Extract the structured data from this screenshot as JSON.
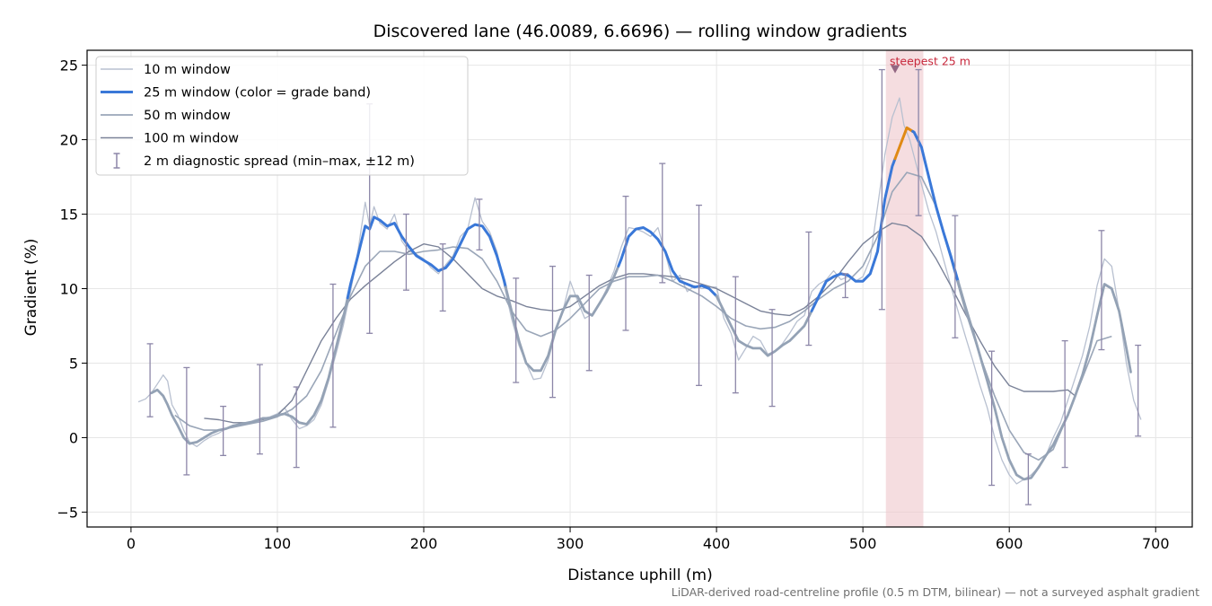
{
  "chart_data": {
    "type": "line",
    "title": "Discovered lane (46.0089, 6.6696) — rolling window gradients",
    "xlabel": "Distance uphill (m)",
    "ylabel": "Gradient (%)",
    "xlim": [
      -30,
      725
    ],
    "ylim": [
      -6,
      26
    ],
    "xticks": [
      0,
      100,
      200,
      300,
      400,
      500,
      600,
      700
    ],
    "yticks": [
      -5,
      0,
      5,
      10,
      15,
      20,
      25
    ],
    "grid": true,
    "legend_position": "top-left",
    "footnote": "LiDAR-derived road-centreline profile (0.5 m DTM, bilinear) — not a surveyed asphalt gradient",
    "colors": {
      "w10": "#b8c0d0",
      "w25": "#3a78d8",
      "w25_muted": "#94a2b5",
      "w25_peak": "#e08a14",
      "w50": "#9aa6b8",
      "w100": "#7a8298",
      "errorbar": "#8c86a8",
      "highlight": "#f0c8cc",
      "annotation": "#c8283c"
    },
    "series": [
      {
        "name": "10 m window",
        "x": [
          5,
          10,
          14,
          18,
          22,
          25,
          28,
          32,
          36,
          40,
          45,
          50,
          55,
          60,
          65,
          70,
          75,
          80,
          85,
          90,
          95,
          100,
          105,
          110,
          115,
          120,
          125,
          130,
          135,
          140,
          145,
          150,
          155,
          160,
          163,
          166,
          170,
          175,
          180,
          185,
          190,
          195,
          200,
          205,
          210,
          215,
          220,
          225,
          230,
          235,
          240,
          245,
          250,
          255,
          260,
          265,
          270,
          275,
          280,
          285,
          290,
          295,
          300,
          305,
          310,
          315,
          320,
          325,
          330,
          335,
          340,
          345,
          350,
          355,
          360,
          365,
          370,
          375,
          380,
          385,
          390,
          395,
          400,
          405,
          410,
          415,
          420,
          425,
          430,
          435,
          440,
          445,
          450,
          455,
          460,
          465,
          470,
          475,
          480,
          485,
          490,
          495,
          500,
          505,
          510,
          515,
          520,
          525,
          528,
          532,
          536,
          540,
          545,
          550,
          555,
          560,
          565,
          570,
          575,
          580,
          585,
          590,
          595,
          600,
          605,
          610,
          615,
          620,
          625,
          630,
          635,
          640,
          645,
          650,
          655,
          660,
          665,
          670,
          675,
          680,
          685,
          690
        ],
        "y": [
          2.4,
          2.6,
          3.0,
          3.6,
          4.2,
          3.8,
          2.2,
          1.5,
          0.5,
          -0.3,
          -0.6,
          -0.2,
          0.1,
          0.3,
          0.6,
          0.8,
          0.9,
          1.0,
          1.2,
          1.3,
          1.4,
          1.6,
          2.0,
          1.2,
          0.6,
          0.8,
          1.2,
          2.2,
          3.8,
          5.6,
          7.5,
          9.8,
          12.5,
          15.8,
          14.2,
          15.5,
          14.4,
          14.0,
          15.0,
          13.2,
          12.5,
          12.3,
          12.0,
          11.4,
          11.0,
          11.6,
          12.2,
          13.5,
          14.0,
          16.1,
          14.5,
          13.8,
          12.5,
          10.2,
          8.0,
          6.2,
          5.0,
          3.9,
          4.0,
          5.2,
          7.0,
          8.5,
          10.5,
          9.2,
          8.0,
          8.3,
          9.0,
          10.0,
          11.2,
          12.8,
          14.1,
          14.0,
          13.8,
          13.5,
          14.1,
          12.4,
          10.5,
          10.9,
          9.8,
          10.2,
          10.0,
          10.1,
          10.1,
          8.0,
          7.0,
          5.2,
          6.0,
          6.8,
          6.5,
          5.6,
          5.8,
          6.3,
          7.0,
          7.8,
          8.2,
          9.8,
          10.3,
          10.6,
          11.2,
          10.6,
          10.8,
          10.5,
          10.8,
          12.0,
          15.5,
          19.0,
          21.5,
          22.8,
          21.0,
          20.0,
          18.5,
          17.0,
          15.2,
          13.8,
          12.0,
          10.2,
          8.5,
          6.8,
          5.2,
          3.5,
          2.0,
          0.0,
          -1.5,
          -2.5,
          -3.1,
          -2.8,
          -2.5,
          -2.0,
          -1.2,
          0.0,
          1.0,
          2.5,
          4.0,
          5.5,
          7.5,
          10.2,
          12.0,
          11.5,
          8.5,
          5.0,
          2.5,
          1.2
        ]
      },
      {
        "name": "25 m window (color = grade band)",
        "x": [
          14,
          18,
          22,
          25,
          28,
          32,
          36,
          40,
          45,
          50,
          55,
          60,
          65,
          70,
          75,
          80,
          85,
          90,
          95,
          100,
          105,
          110,
          115,
          120,
          125,
          130,
          135,
          140,
          145,
          150,
          155,
          160,
          163,
          166,
          170,
          175,
          180,
          185,
          190,
          195,
          200,
          205,
          210,
          215,
          220,
          225,
          230,
          235,
          240,
          245,
          250,
          255,
          260,
          265,
          270,
          275,
          280,
          285,
          290,
          295,
          300,
          305,
          310,
          315,
          320,
          325,
          330,
          335,
          340,
          345,
          350,
          355,
          360,
          365,
          370,
          375,
          380,
          385,
          390,
          395,
          400,
          405,
          410,
          415,
          420,
          425,
          430,
          435,
          440,
          445,
          450,
          455,
          460,
          465,
          470,
          475,
          480,
          485,
          490,
          495,
          500,
          505,
          510,
          515,
          520,
          525,
          530,
          535,
          540,
          545,
          550,
          555,
          560,
          565,
          570,
          575,
          580,
          585,
          590,
          595,
          600,
          605,
          610,
          615,
          620,
          625,
          630,
          635,
          640,
          645,
          650,
          655,
          660,
          665,
          670,
          675,
          680,
          683
        ],
        "y": [
          3.0,
          3.2,
          2.8,
          2.2,
          1.5,
          0.8,
          0.0,
          -0.4,
          -0.3,
          0.0,
          0.3,
          0.5,
          0.6,
          0.8,
          0.9,
          1.0,
          1.1,
          1.3,
          1.3,
          1.5,
          1.6,
          1.4,
          1.0,
          0.9,
          1.5,
          2.5,
          4.0,
          6.0,
          8.0,
          10.3,
          12.2,
          14.2,
          14.0,
          14.8,
          14.6,
          14.2,
          14.4,
          13.5,
          12.8,
          12.2,
          11.9,
          11.6,
          11.2,
          11.4,
          12.0,
          13.0,
          14.0,
          14.3,
          14.2,
          13.5,
          12.2,
          10.5,
          8.5,
          6.5,
          5.0,
          4.5,
          4.5,
          5.5,
          7.2,
          8.5,
          9.5,
          9.5,
          8.5,
          8.2,
          9.0,
          9.8,
          10.8,
          12.0,
          13.5,
          14.0,
          14.1,
          13.8,
          13.3,
          12.5,
          11.2,
          10.5,
          10.3,
          10.1,
          10.2,
          10.0,
          9.5,
          8.5,
          7.5,
          6.5,
          6.2,
          6.0,
          6.0,
          5.5,
          5.8,
          6.2,
          6.5,
          7.0,
          7.5,
          8.5,
          9.5,
          10.5,
          10.8,
          11.0,
          10.9,
          10.5,
          10.5,
          11.0,
          12.5,
          16.0,
          18.2,
          19.5,
          20.8,
          20.5,
          19.5,
          17.5,
          15.5,
          13.8,
          12.2,
          10.5,
          8.8,
          7.2,
          5.5,
          3.8,
          2.0,
          0.0,
          -1.5,
          -2.5,
          -2.8,
          -2.7,
          -2.0,
          -1.2,
          -0.5,
          0.5,
          1.5,
          2.8,
          4.2,
          6.0,
          8.2,
          10.3,
          10.0,
          8.5,
          6.0,
          4.4
        ],
        "bands": [
          {
            "x_from": 14,
            "x_to": 148,
            "color": "#94a2b5"
          },
          {
            "x_from": 148,
            "x_to": 256,
            "color": "#3a78d8"
          },
          {
            "x_from": 256,
            "x_to": 333,
            "color": "#94a2b5"
          },
          {
            "x_from": 333,
            "x_to": 400,
            "color": "#3a78d8"
          },
          {
            "x_from": 400,
            "x_to": 465,
            "color": "#94a2b5"
          },
          {
            "x_from": 465,
            "x_to": 522,
            "color": "#3a78d8"
          },
          {
            "x_from": 522,
            "x_to": 534,
            "color": "#e08a14"
          },
          {
            "x_from": 534,
            "x_to": 565,
            "color": "#3a78d8"
          },
          {
            "x_from": 565,
            "x_to": 683,
            "color": "#94a2b5"
          }
        ]
      },
      {
        "name": "50 m window",
        "x": [
          30,
          40,
          50,
          60,
          70,
          80,
          90,
          100,
          110,
          120,
          130,
          140,
          150,
          160,
          170,
          180,
          190,
          200,
          210,
          220,
          230,
          240,
          250,
          260,
          270,
          280,
          290,
          300,
          310,
          320,
          330,
          340,
          350,
          360,
          370,
          380,
          390,
          400,
          410,
          420,
          430,
          440,
          450,
          460,
          470,
          480,
          490,
          500,
          510,
          520,
          530,
          540,
          550,
          560,
          570,
          580,
          590,
          600,
          610,
          620,
          630,
          640,
          650,
          660,
          670
        ],
        "y": [
          1.5,
          0.8,
          0.5,
          0.5,
          0.7,
          0.9,
          1.1,
          1.4,
          1.9,
          2.8,
          4.5,
          7.0,
          9.5,
          11.5,
          12.5,
          12.5,
          12.3,
          12.5,
          12.6,
          12.8,
          12.7,
          12.0,
          10.5,
          8.5,
          7.2,
          6.8,
          7.2,
          8.0,
          9.0,
          10.0,
          10.5,
          10.8,
          10.8,
          10.9,
          10.5,
          10.0,
          9.5,
          8.8,
          8.0,
          7.5,
          7.3,
          7.4,
          7.8,
          8.5,
          9.3,
          10.0,
          10.5,
          11.5,
          13.5,
          16.5,
          17.8,
          17.5,
          15.5,
          12.0,
          8.5,
          5.5,
          2.8,
          0.5,
          -1.0,
          -1.5,
          -0.8,
          1.5,
          4.0,
          6.5,
          6.8
        ]
      },
      {
        "name": "100 m window",
        "x": [
          50,
          60,
          70,
          80,
          90,
          100,
          110,
          120,
          130,
          140,
          150,
          160,
          170,
          180,
          190,
          200,
          210,
          220,
          230,
          240,
          250,
          260,
          270,
          280,
          290,
          300,
          310,
          320,
          330,
          340,
          350,
          360,
          370,
          380,
          390,
          400,
          410,
          420,
          430,
          440,
          450,
          460,
          470,
          480,
          490,
          500,
          510,
          520,
          530,
          540,
          550,
          560,
          570,
          580,
          590,
          600,
          610,
          620,
          630,
          640,
          645
        ],
        "y": [
          1.3,
          1.2,
          1.0,
          1.0,
          1.2,
          1.5,
          2.5,
          4.5,
          6.5,
          8.0,
          9.3,
          10.2,
          11.0,
          11.8,
          12.5,
          13.0,
          12.8,
          12.0,
          11.0,
          10.0,
          9.5,
          9.2,
          8.8,
          8.6,
          8.5,
          8.8,
          9.5,
          10.2,
          10.7,
          11.0,
          11.0,
          10.9,
          10.8,
          10.6,
          10.3,
          10.0,
          9.5,
          9.0,
          8.5,
          8.3,
          8.2,
          8.7,
          9.5,
          10.5,
          11.8,
          13.0,
          13.8,
          14.4,
          14.2,
          13.5,
          12.0,
          10.2,
          8.3,
          6.5,
          4.8,
          3.5,
          3.1,
          3.1,
          3.1,
          3.2,
          2.8
        ]
      }
    ],
    "error_bars": {
      "name": "2 m diagnostic spread (min–max, ±12 m)",
      "x": [
        13,
        38,
        63,
        88,
        113,
        138,
        163,
        188,
        213,
        238,
        263,
        288,
        313,
        338,
        363,
        388,
        413,
        438,
        463,
        488,
        513,
        538,
        563,
        588,
        613,
        638,
        663,
        688
      ],
      "low": [
        1.4,
        -2.5,
        -1.2,
        -1.1,
        -2.0,
        0.7,
        7.0,
        9.9,
        8.5,
        12.6,
        3.7,
        2.7,
        4.5,
        7.2,
        10.4,
        3.5,
        3.0,
        2.1,
        6.2,
        9.4,
        8.6,
        14.9,
        6.7,
        -3.2,
        -4.5,
        -2.0,
        5.9,
        0.1
      ],
      "high": [
        6.3,
        4.7,
        2.1,
        4.9,
        3.4,
        10.3,
        22.4,
        15.0,
        13.0,
        16.0,
        10.7,
        11.5,
        10.9,
        16.2,
        18.4,
        15.6,
        10.8,
        8.6,
        13.8,
        11.0,
        24.7,
        24.7,
        14.9,
        5.8,
        -1.1,
        6.5,
        13.9,
        6.2
      ]
    },
    "highlight_band": {
      "x_from": 516,
      "x_to": 541
    },
    "annotations": [
      {
        "text": "steepest 25 m",
        "x": 522,
        "y": 24.7
      }
    ]
  }
}
